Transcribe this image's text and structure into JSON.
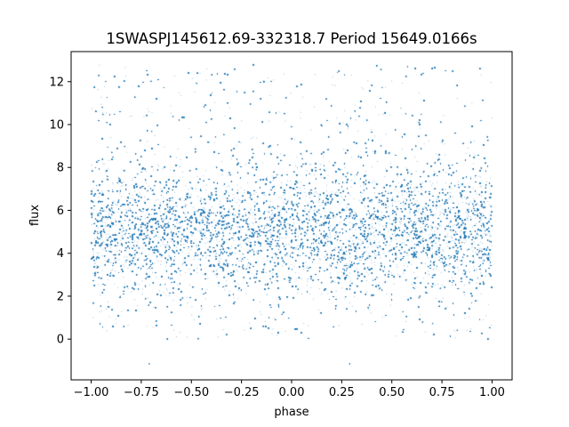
{
  "chart_data": {
    "type": "scatter",
    "title": "1SWASPJ145612.69-332318.7 Period 15649.0166s",
    "xlabel": "phase",
    "ylabel": "flux",
    "xlim": [
      -1.1,
      1.1
    ],
    "ylim": [
      -1.9,
      13.4
    ],
    "x_ticks": [
      -1.0,
      -0.75,
      -0.5,
      -0.25,
      0.0,
      0.25,
      0.5,
      0.75,
      1.0
    ],
    "x_tick_labels": [
      "−1.00",
      "−0.75",
      "−0.50",
      "−0.25",
      "0.00",
      "0.25",
      "0.50",
      "0.75",
      "1.00"
    ],
    "y_ticks": [
      0,
      2,
      4,
      6,
      8,
      10,
      12
    ],
    "y_tick_labels": [
      "0",
      "2",
      "4",
      "6",
      "8",
      "10",
      "12"
    ],
    "grid": false,
    "point_color": "#1f77b4",
    "series": [
      {
        "x_range": [
          -1.0,
          1.0
        ],
        "y_range": [
          0.0,
          12.8
        ],
        "y_center": 5.1,
        "y_spread": 1.5,
        "outliers": [
          {
            "x": -0.71,
            "y": -1.15
          },
          {
            "x": 0.29,
            "y": -1.15
          }
        ]
      }
    ]
  }
}
